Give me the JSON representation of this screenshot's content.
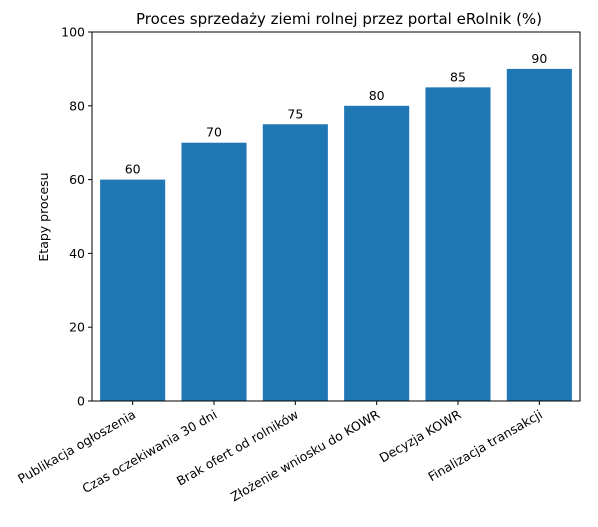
{
  "chart_data": {
    "type": "bar",
    "title": "Proces sprzedaży ziemi rolnej przez portal eRolnik (%)",
    "xlabel": "",
    "ylabel": "Etapy procesu",
    "categories": [
      "Publikacja ogłoszenia",
      "Czas oczekiwania 30 dni",
      "Brak ofert od rolników",
      "Złożenie wniosku do KOWR",
      "Decyzja KOWR",
      "Finalizacja transakcji"
    ],
    "values": [
      60,
      70,
      75,
      80,
      85,
      90
    ],
    "ylim": [
      0,
      100
    ],
    "yticks": [
      0,
      20,
      40,
      60,
      80,
      100
    ],
    "bar_color": "#1f77b4",
    "grid": false,
    "legend": "none"
  }
}
